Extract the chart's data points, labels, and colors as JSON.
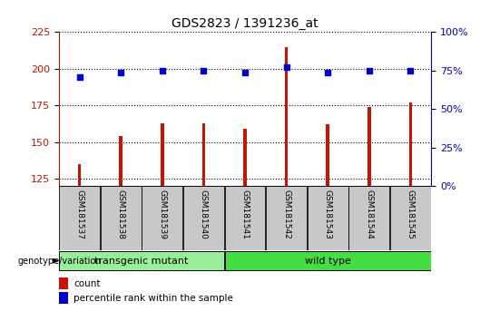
{
  "title": "GDS2823 / 1391236_at",
  "samples": [
    "GSM181537",
    "GSM181538",
    "GSM181539",
    "GSM181540",
    "GSM181541",
    "GSM181542",
    "GSM181543",
    "GSM181544",
    "GSM181545"
  ],
  "counts": [
    135,
    154,
    163,
    163,
    159,
    215,
    162,
    174,
    177
  ],
  "percentiles": [
    71,
    74,
    75,
    75,
    74,
    77,
    74,
    75,
    75
  ],
  "groups": [
    {
      "label": "transgenic mutant",
      "start": 0,
      "end": 3,
      "color": "#99ee99"
    },
    {
      "label": "wild type",
      "start": 4,
      "end": 8,
      "color": "#44dd44"
    }
  ],
  "ylim_left": [
    120,
    225
  ],
  "ylim_right": [
    0,
    100
  ],
  "yticks_left": [
    125,
    150,
    175,
    200,
    225
  ],
  "yticks_right": [
    0,
    25,
    50,
    75,
    100
  ],
  "bar_color": "#cc1100",
  "dot_color": "#0000cc",
  "grid_color": "#000000",
  "background_color": "#ffffff",
  "axis_left_color": "#cc1100",
  "axis_right_color": "#0000cc",
  "bar_width": 0.08,
  "sample_bg_color": "#c8c8c8"
}
